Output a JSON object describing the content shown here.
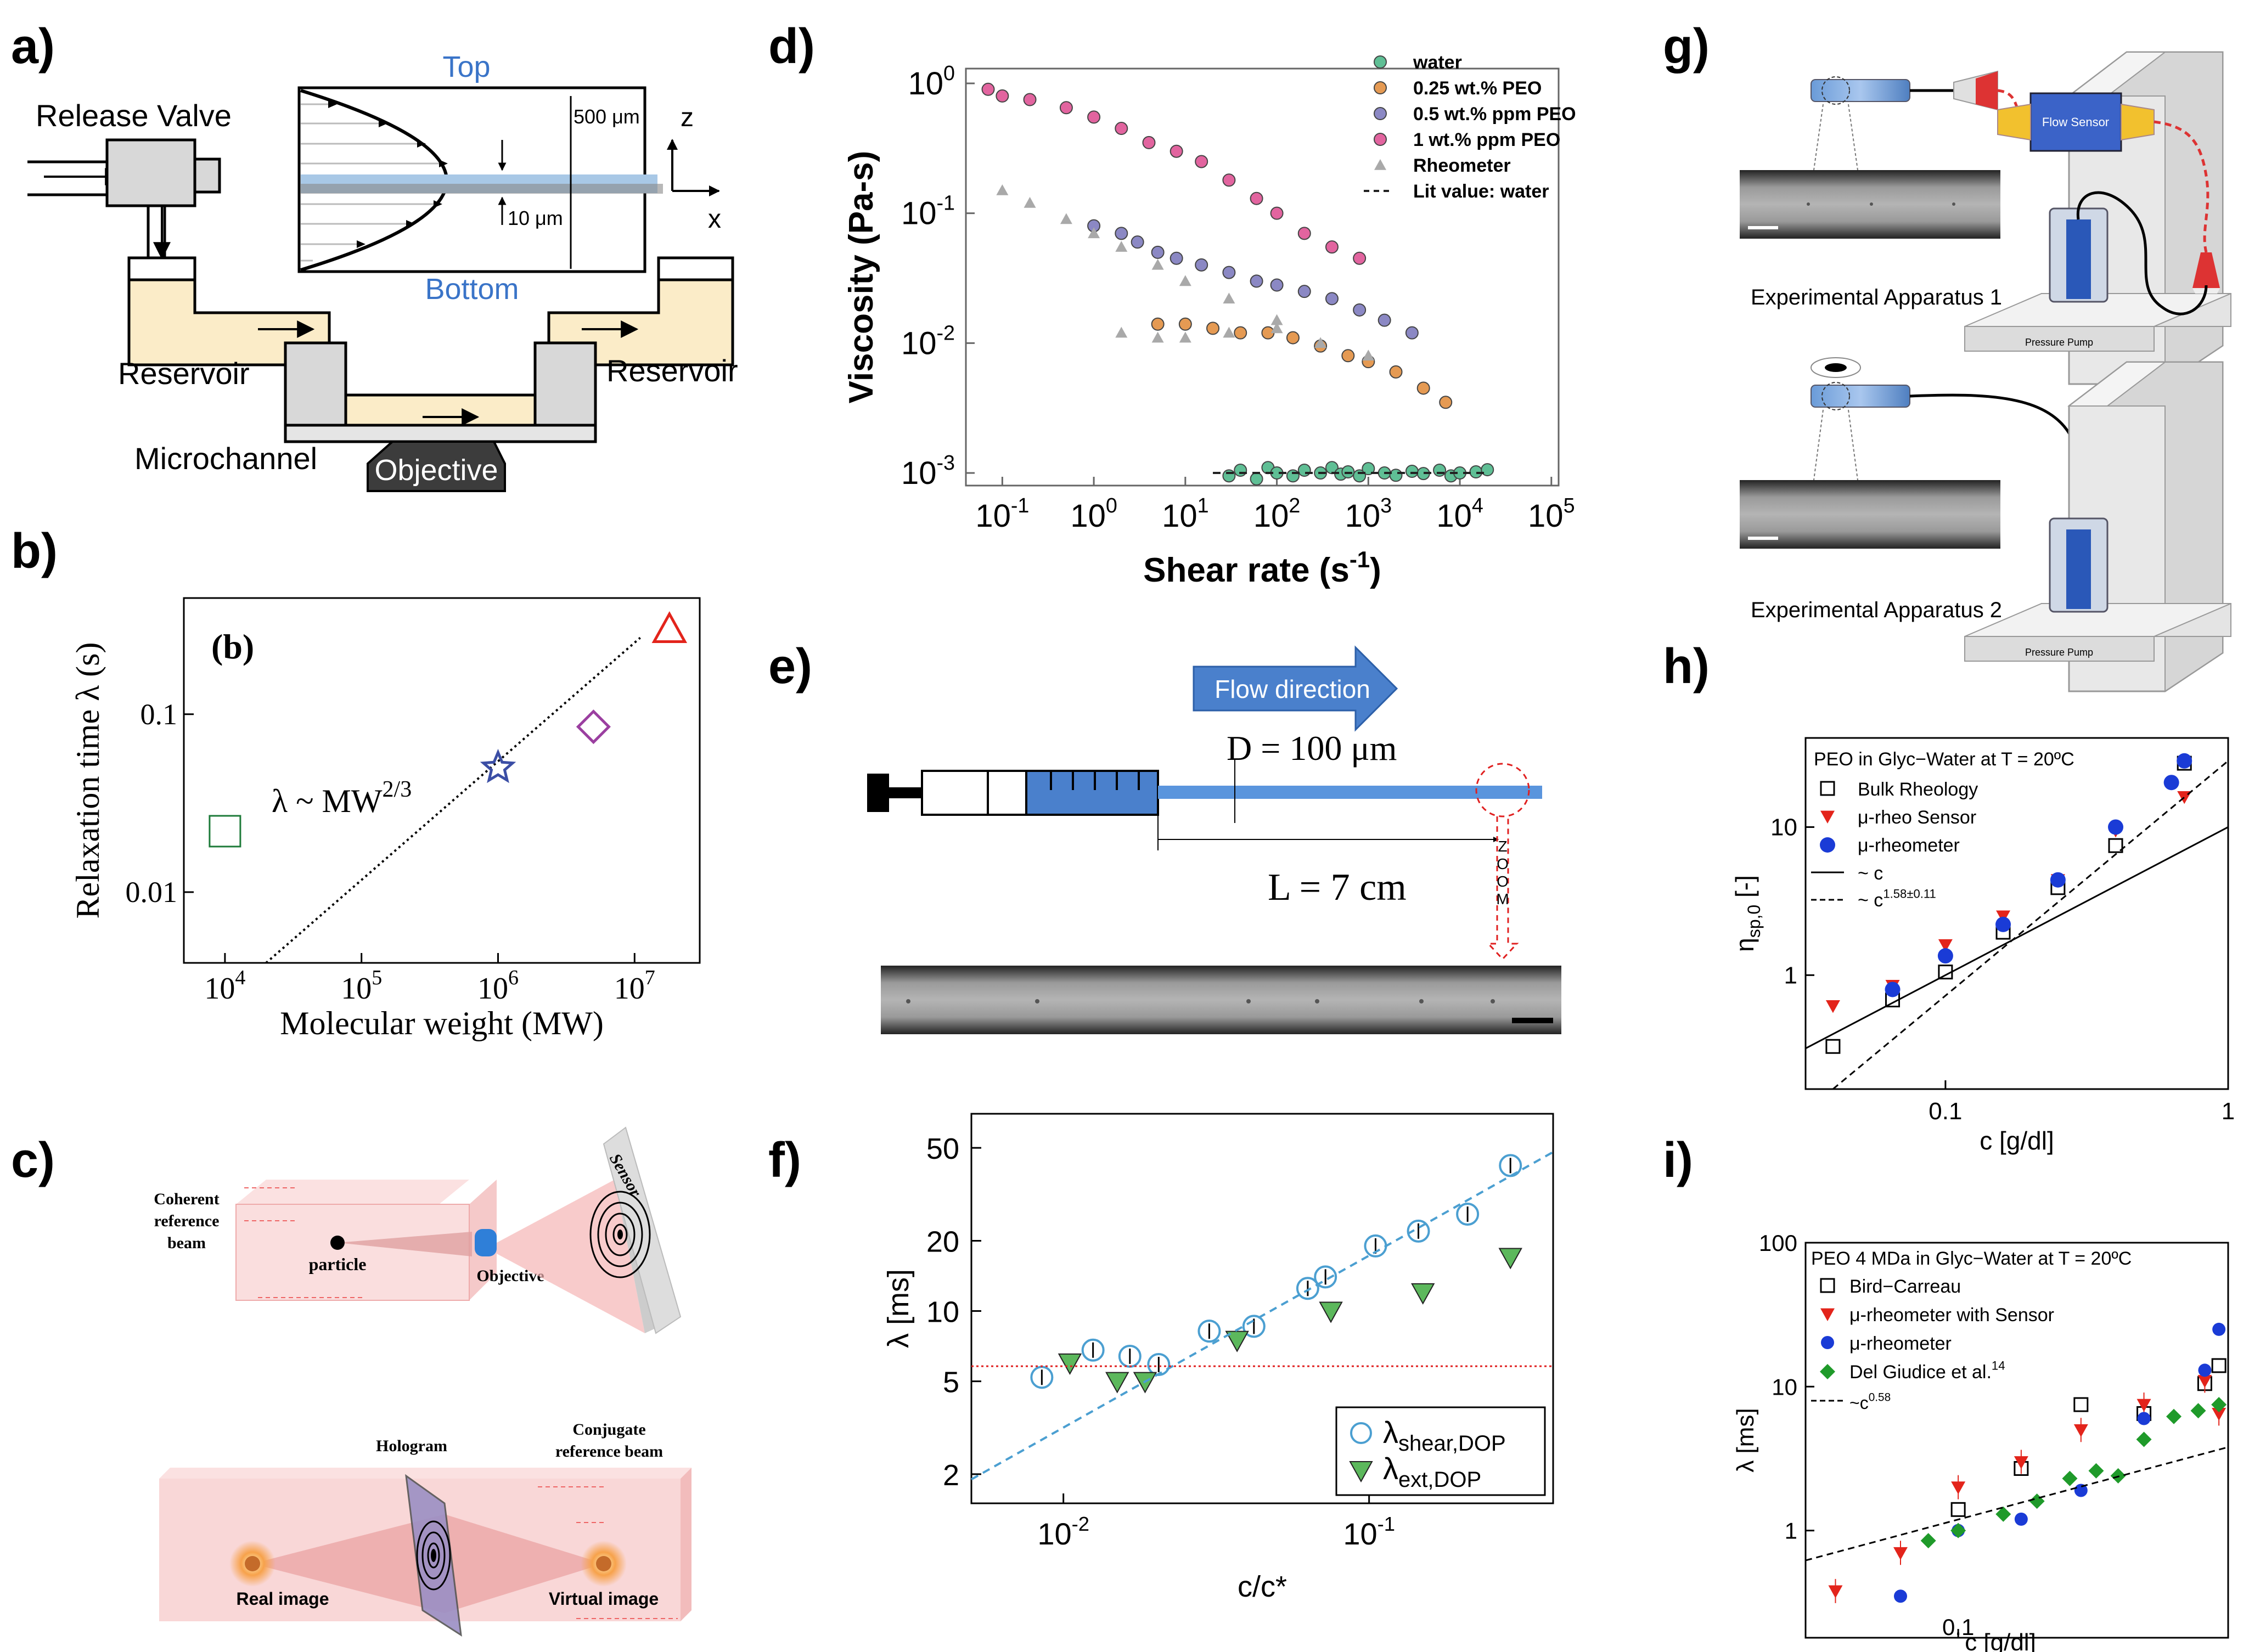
{
  "panel_labels": {
    "a": "a)",
    "b": "b)",
    "c": "c)",
    "d": "d)",
    "e": "e)",
    "f": "f)",
    "g": "g)",
    "h": "h)",
    "i": "i)"
  },
  "panel_a": {
    "release_valve": "Release Valve",
    "top": "Top",
    "bottom": "Bottom",
    "dim_500": "500 μm",
    "dim_10": "10 μm",
    "axis_z": "z",
    "axis_x": "x",
    "reservoir_left": "Reservoir",
    "reservoir_right": "Reservoir",
    "microchannel": "Microchannel",
    "objective": "Objective"
  },
  "panel_b_text": {
    "tag": "(b)",
    "scaling_law": "λ ~ MW",
    "scaling_exp": "2/3"
  },
  "panel_c": {
    "coherent_1": "Coherent",
    "coherent_2": "reference",
    "coherent_3": "beam",
    "particle": "particle",
    "objective": "Objective",
    "sensor": "Sensor",
    "hologram": "Hologram",
    "conjugate_1": "Conjugate",
    "conjugate_2": "reference beam",
    "real_image": "Real image",
    "virtual_image": "Virtual image"
  },
  "panel_e": {
    "flow_direction": "Flow direction",
    "diameter": "D = 100 μm",
    "length": "L = 7 cm",
    "zoom": [
      "Z",
      "O",
      "O",
      "M"
    ]
  },
  "panel_g": {
    "apparatus_1": "Experimental Apparatus 1",
    "apparatus_2": "Experimental Apparatus 2",
    "flow_sensor": "Flow Sensor",
    "pressure_pump": "Pressure Pump"
  },
  "colors": {
    "water": "#5fbf95",
    "peo025": "#e59a53",
    "peo05": "#8b88c4",
    "peo1": "#e2649f",
    "rheometer": "#a9a9a9",
    "shear": "#4b9fd1",
    "ext": "#5cb85c",
    "red": "#e3241b",
    "blue": "#1a3bd6",
    "green": "#1f9a2a",
    "purple": "#9b3fa0",
    "panel_b_star": "#3b4ea5",
    "panel_b_square": "#1e7b3a",
    "box_blue": "#4a80cc"
  },
  "chart_data": [
    {
      "id": "b",
      "type": "scatter",
      "xscale": "log",
      "yscale": "log",
      "xlabel": "Molecular weight (MW)",
      "ylabel": "Relaxation time  λ (s)",
      "xlim": [
        5000,
        30000000
      ],
      "ylim": [
        0.004,
        0.45
      ],
      "xticks": [
        10000,
        100000,
        1000000,
        10000000
      ],
      "xtick_labels": [
        [
          "10",
          "4"
        ],
        [
          "10",
          "5"
        ],
        [
          "10",
          "6"
        ],
        [
          "10",
          "7"
        ]
      ],
      "yticks": [
        0.01,
        0.1
      ],
      "ytick_labels": [
        "0.01",
        "0.1"
      ],
      "points": [
        {
          "marker": "square",
          "x": 10000,
          "y": 0.022
        },
        {
          "marker": "star",
          "x": 1000000,
          "y": 0.05
        },
        {
          "marker": "diamond",
          "x": 5000000,
          "y": 0.085
        },
        {
          "marker": "triangle",
          "x": 18000000,
          "y": 0.3
        }
      ],
      "fit_line": {
        "x0": 20000,
        "y0": 0.004,
        "slope": 0.667
      }
    },
    {
      "id": "d",
      "type": "scatter",
      "xscale": "log",
      "yscale": "log",
      "xlabel": "Shear rate (s",
      "xlabel_sup": "-1",
      "xlabel_end": ")",
      "ylabel": "Viscosity (Pa-s)",
      "xlim": [
        0.04,
        120000
      ],
      "ylim": [
        0.0008,
        1.3
      ],
      "xtick_exps": [
        -1,
        0,
        1,
        2,
        3,
        4,
        5
      ],
      "ytick_exps": [
        0,
        -1,
        -2,
        -3
      ],
      "legend": [
        "water",
        "0.25 wt.% PEO",
        "0.5 wt.% ppm PEO",
        "1 wt.% ppm PEO",
        "Rheometer",
        "Lit value: water"
      ],
      "series": [
        {
          "name": "water",
          "marker": "circle",
          "x": [
            30,
            40,
            60,
            80,
            100,
            150,
            200,
            300,
            400,
            500,
            600,
            800,
            1000,
            1500,
            2000,
            3000,
            4000,
            6000,
            8000,
            10000,
            15000,
            20000
          ],
          "y": [
            0.00095,
            0.00105,
            0.0009,
            0.0011,
            0.001,
            0.00095,
            0.00105,
            0.001,
            0.0011,
            0.00098,
            0.00102,
            0.00095,
            0.00108,
            0.001,
            0.00096,
            0.00103,
            0.00099,
            0.00105,
            0.00095,
            0.001,
            0.00102,
            0.00106
          ]
        },
        {
          "name": "0.25 wt.% PEO",
          "marker": "circle",
          "x": [
            5,
            10,
            20,
            40,
            80,
            150,
            300,
            600,
            1000,
            2000,
            4000,
            7000
          ],
          "y": [
            0.014,
            0.014,
            0.013,
            0.012,
            0.012,
            0.011,
            0.0095,
            0.008,
            0.0072,
            0.006,
            0.0045,
            0.0035
          ]
        },
        {
          "name": "0.5 wt.% ppm PEO",
          "marker": "circle",
          "x": [
            1,
            2,
            3,
            5,
            8,
            15,
            30,
            60,
            100,
            200,
            400,
            800,
            1500,
            3000
          ],
          "y": [
            0.08,
            0.07,
            0.06,
            0.05,
            0.045,
            0.04,
            0.035,
            0.03,
            0.028,
            0.025,
            0.022,
            0.018,
            0.015,
            0.012
          ]
        },
        {
          "name": "1 wt.% ppm PEO",
          "marker": "circle",
          "x": [
            0.07,
            0.1,
            0.2,
            0.5,
            1,
            2,
            4,
            8,
            15,
            30,
            60,
            100,
            200,
            400,
            800
          ],
          "y": [
            0.9,
            0.8,
            0.75,
            0.65,
            0.55,
            0.45,
            0.35,
            0.3,
            0.25,
            0.18,
            0.13,
            0.1,
            0.07,
            0.055,
            0.045
          ]
        },
        {
          "name": "Rheometer",
          "marker": "triangle",
          "x": [
            0.1,
            0.2,
            0.5,
            1,
            2,
            5,
            10,
            30,
            100,
            300,
            1000,
            2,
            5,
            10,
            30,
            100
          ],
          "y": [
            0.15,
            0.12,
            0.09,
            0.07,
            0.055,
            0.04,
            0.03,
            0.022,
            0.015,
            0.01,
            0.008,
            0.012,
            0.011,
            0.011,
            0.012,
            0.013
          ]
        },
        {
          "name": "Lit value: water",
          "marker": "dashed-line",
          "x": [
            20,
            20000
          ],
          "y": [
            0.001,
            0.001
          ]
        }
      ]
    },
    {
      "id": "f",
      "type": "scatter",
      "xscale": "log",
      "yscale": "log",
      "xlabel": "c/c*",
      "ylabel": "λ [ms]",
      "xlim": [
        0.005,
        0.4
      ],
      "ylim": [
        1.5,
        70
      ],
      "xtick_labels": [
        [
          "10",
          "-2"
        ],
        [
          "10",
          "-1"
        ]
      ],
      "xticks": [
        0.01,
        0.1
      ],
      "yticks": [
        2,
        5,
        10,
        20,
        50
      ],
      "ytick_labels": [
        "2",
        "5",
        "10",
        "20",
        "50"
      ],
      "legend": [
        {
          "base": "λ",
          "sub": "shear,DOP"
        },
        {
          "base": "λ",
          "sub": "ext,DOP"
        }
      ],
      "series": [
        {
          "name": "λshear,DOP",
          "marker": "open-circle",
          "x": [
            0.0085,
            0.0125,
            0.0165,
            0.0205,
            0.03,
            0.042,
            0.063,
            0.072,
            0.105,
            0.145,
            0.21,
            0.29
          ],
          "y": [
            5.2,
            6.8,
            6.4,
            5.9,
            8.2,
            8.6,
            12.5,
            14,
            19,
            22,
            26,
            42
          ]
        },
        {
          "name": "λext,DOP",
          "marker": "triangle-down",
          "x": [
            0.0105,
            0.015,
            0.0185,
            0.037,
            0.075,
            0.15,
            0.29
          ],
          "y": [
            6,
            5,
            5,
            7.5,
            10,
            12,
            17
          ]
        },
        {
          "name": "fit",
          "marker": "dashed-line",
          "x": [
            0.005,
            0.4
          ],
          "y": [
            1.9,
            48
          ]
        },
        {
          "name": "reference",
          "marker": "dotted-line",
          "x": [
            0.005,
            0.4
          ],
          "y": [
            5.8,
            5.8
          ]
        }
      ]
    },
    {
      "id": "h",
      "type": "scatter",
      "xscale": "log",
      "yscale": "log",
      "title": "PEO in Glyc−Water at T = 20ºC",
      "xlabel": "c [g/dl]",
      "ylabel": "η",
      "ylabel_sub": "sp,0",
      "ylabel_end": " [-]",
      "xlim": [
        0.032,
        1.0
      ],
      "ylim": [
        0.17,
        40
      ],
      "xticks": [
        0.1,
        1
      ],
      "xtick_labels": [
        "0.1",
        "1"
      ],
      "yticks": [
        1,
        10
      ],
      "ytick_labels": [
        "1",
        "10"
      ],
      "legend": [
        "Bulk Rheology",
        "μ-rheo Sensor",
        "μ-rheometer",
        "~ c",
        "~ c"
      ],
      "legend_sup": "1.58±0.11",
      "series": [
        {
          "name": "Bulk Rheology",
          "marker": "open-square",
          "x": [
            0.04,
            0.065,
            0.1,
            0.16,
            0.25,
            0.4,
            0.7
          ],
          "y": [
            0.33,
            0.68,
            1.05,
            1.95,
            3.9,
            7.5,
            27
          ]
        },
        {
          "name": "μ-rheo Sensor",
          "marker": "triangle-down",
          "x": [
            0.04,
            0.065,
            0.1,
            0.16,
            0.25,
            0.4,
            0.7
          ],
          "y": [
            0.62,
            0.85,
            1.6,
            2.5,
            4.4,
            9.5,
            16
          ]
        },
        {
          "name": "μ-rheometer",
          "marker": "circle",
          "x": [
            0.065,
            0.1,
            0.16,
            0.25,
            0.4,
            0.63,
            0.7
          ],
          "y": [
            0.8,
            1.35,
            2.2,
            4.4,
            10,
            20,
            28
          ]
        },
        {
          "name": "~ c",
          "marker": "solid-line",
          "x": [
            0.032,
            1.0
          ],
          "y": [
            0.32,
            10
          ]
        },
        {
          "name": "~ c^1.58±0.11",
          "marker": "dashed-line",
          "x": [
            0.04,
            1.0
          ],
          "y": [
            0.17,
            28
          ]
        }
      ]
    },
    {
      "id": "i",
      "type": "scatter",
      "xscale": "log",
      "yscale": "log",
      "title": "PEO 4 MDa in Glyc−Water at T = 20ºC",
      "xlabel": "c [g/dl]",
      "ylabel": "λ [ms]",
      "xlim": [
        0.032,
        0.75
      ],
      "ylim": [
        0.18,
        100
      ],
      "xticks": [
        0.1
      ],
      "xtick_labels": [
        "0.1"
      ],
      "yticks": [
        1,
        10,
        100
      ],
      "ytick_labels": [
        "1",
        "10",
        "100"
      ],
      "legend": [
        "Bird−Carreau",
        "μ-rheometer with Sensor",
        "μ-rheometer",
        "Del Giudice et al."
      ],
      "legend_sup": "14",
      "fit_label": "~c",
      "fit_sup": "0.58",
      "series": [
        {
          "name": "Bird−Carreau",
          "marker": "open-square",
          "x": [
            0.1,
            0.16,
            0.25,
            0.4,
            0.63,
            0.7
          ],
          "y": [
            1.4,
            2.7,
            7.5,
            6.5,
            10.5,
            14
          ]
        },
        {
          "name": "μ-rheometer with Sensor",
          "marker": "triangle-down",
          "x": [
            0.04,
            0.065,
            0.1,
            0.16,
            0.25,
            0.4,
            0.63,
            0.7
          ],
          "y": [
            0.38,
            0.7,
            2,
            3,
            5,
            7.5,
            11,
            6.5
          ]
        },
        {
          "name": "μ-rheometer",
          "marker": "circle",
          "x": [
            0.065,
            0.1,
            0.16,
            0.25,
            0.4,
            0.63,
            0.7
          ],
          "y": [
            0.35,
            1,
            1.2,
            1.9,
            6,
            13,
            25
          ]
        },
        {
          "name": "Del Giudice et al.",
          "marker": "diamond",
          "x": [
            0.08,
            0.1,
            0.14,
            0.18,
            0.23,
            0.28,
            0.33,
            0.4,
            0.5,
            0.6,
            0.7
          ],
          "y": [
            0.85,
            1.0,
            1.3,
            1.6,
            2.3,
            2.6,
            2.4,
            4.3,
            6.2,
            6.8,
            7.5
          ]
        },
        {
          "name": "~c^0.58",
          "marker": "dashed-line",
          "x": [
            0.032,
            0.75
          ],
          "y": [
            0.62,
            3.8
          ]
        }
      ]
    }
  ]
}
